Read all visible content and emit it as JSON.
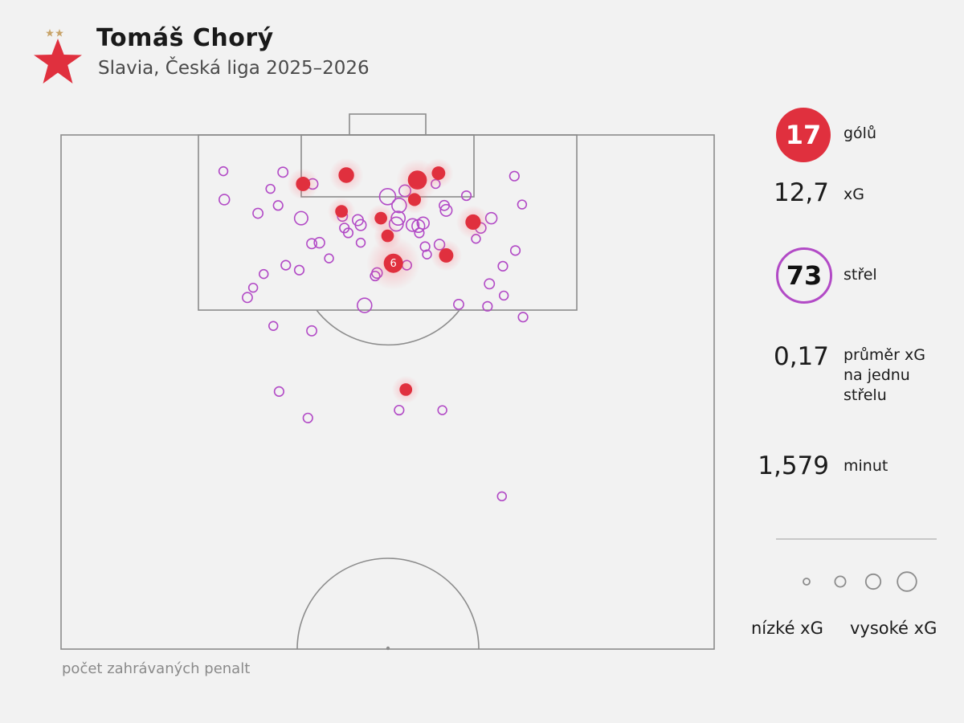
{
  "header": {
    "player_name": "Tomáš Chorý",
    "subtitle": "Slavia, Česká liga 2025–2026"
  },
  "colors": {
    "goal": "#e0303e",
    "shot": "#b24ac6",
    "pitch_line": "#8c8c8c",
    "background": "#f2f2f2"
  },
  "stats": {
    "goals_value": "17",
    "goals_label": "gólů",
    "xg_value": "12,7",
    "xg_label": "xG",
    "shots_value": "73",
    "shots_label": "střel",
    "avg_xg_value": "0,17",
    "avg_xg_label_line1": "průměr xG",
    "avg_xg_label_line2": "na jednu",
    "avg_xg_label_line3": "střelu",
    "minutes_value": "1,579",
    "minutes_label": "minut"
  },
  "legend": {
    "low_label": "nízké xG",
    "high_label": "vysoké xG",
    "example_xg": [
      0.03,
      0.08,
      0.15,
      0.25
    ]
  },
  "footnote": "počet zahrávaných penalt",
  "chart_data": {
    "type": "scatter",
    "description_units": "x = metres across pitch width (0–68, left to right), y = metres from goal line",
    "penalty_goals_label": "6",
    "goals": [
      {
        "x": 25.2,
        "y": 5.0,
        "xg": 0.18
      },
      {
        "x": 29.7,
        "y": 4.1,
        "xg": 0.23
      },
      {
        "x": 37.1,
        "y": 4.6,
        "xg": 0.4
      },
      {
        "x": 39.3,
        "y": 3.9,
        "xg": 0.15
      },
      {
        "x": 36.8,
        "y": 6.6,
        "xg": 0.13
      },
      {
        "x": 29.2,
        "y": 7.8,
        "xg": 0.12
      },
      {
        "x": 33.3,
        "y": 8.5,
        "xg": 0.12
      },
      {
        "x": 42.9,
        "y": 8.9,
        "xg": 0.22
      },
      {
        "x": 34.0,
        "y": 10.3,
        "xg": 0.12
      },
      {
        "x": 34.6,
        "y": 13.1,
        "xg": 0.76,
        "penalty": true
      },
      {
        "x": 40.1,
        "y": 12.3,
        "xg": 0.18
      },
      {
        "x": 35.9,
        "y": 26.0,
        "xg": 0.12
      }
    ],
    "shots": [
      {
        "x": 23.1,
        "y": 3.8,
        "xg": 0.05
      },
      {
        "x": 17.0,
        "y": 6.6,
        "xg": 0.06
      },
      {
        "x": 26.2,
        "y": 5.0,
        "xg": 0.06
      },
      {
        "x": 35.8,
        "y": 5.7,
        "xg": 0.09
      },
      {
        "x": 34.0,
        "y": 6.3,
        "xg": 0.25
      },
      {
        "x": 42.2,
        "y": 6.2,
        "xg": 0.04
      },
      {
        "x": 47.2,
        "y": 4.2,
        "xg": 0.04
      },
      {
        "x": 20.5,
        "y": 8.0,
        "xg": 0.05
      },
      {
        "x": 22.6,
        "y": 7.2,
        "xg": 0.04
      },
      {
        "x": 25.0,
        "y": 8.5,
        "xg": 0.14
      },
      {
        "x": 29.3,
        "y": 8.3,
        "xg": 0.05
      },
      {
        "x": 30.9,
        "y": 8.7,
        "xg": 0.07
      },
      {
        "x": 35.2,
        "y": 7.2,
        "xg": 0.18
      },
      {
        "x": 35.1,
        "y": 8.5,
        "xg": 0.16
      },
      {
        "x": 34.9,
        "y": 9.1,
        "xg": 0.16
      },
      {
        "x": 36.6,
        "y": 9.2,
        "xg": 0.12
      },
      {
        "x": 37.2,
        "y": 9.3,
        "xg": 0.12
      },
      {
        "x": 37.7,
        "y": 9.0,
        "xg": 0.1
      },
      {
        "x": 39.9,
        "y": 7.2,
        "xg": 0.05
      },
      {
        "x": 40.1,
        "y": 7.7,
        "xg": 0.09
      },
      {
        "x": 44.8,
        "y": 8.5,
        "xg": 0.08
      },
      {
        "x": 43.7,
        "y": 9.5,
        "xg": 0.06
      },
      {
        "x": 31.2,
        "y": 9.2,
        "xg": 0.07
      },
      {
        "x": 29.9,
        "y": 10.0,
        "xg": 0.04
      },
      {
        "x": 37.3,
        "y": 10.0,
        "xg": 0.04
      },
      {
        "x": 26.9,
        "y": 11.0,
        "xg": 0.06
      },
      {
        "x": 26.1,
        "y": 11.1,
        "xg": 0.05
      },
      {
        "x": 37.9,
        "y": 11.4,
        "xg": 0.04
      },
      {
        "x": 39.4,
        "y": 11.2,
        "xg": 0.06
      },
      {
        "x": 47.3,
        "y": 11.8,
        "xg": 0.04
      },
      {
        "x": 46.0,
        "y": 13.4,
        "xg": 0.04
      },
      {
        "x": 36.0,
        "y": 13.3,
        "xg": 0.04
      },
      {
        "x": 32.9,
        "y": 14.1,
        "xg": 0.06
      },
      {
        "x": 32.7,
        "y": 14.4,
        "xg": 0.04
      },
      {
        "x": 24.8,
        "y": 13.8,
        "xg": 0.04
      },
      {
        "x": 23.4,
        "y": 13.3,
        "xg": 0.04
      },
      {
        "x": 19.4,
        "y": 16.6,
        "xg": 0.05
      },
      {
        "x": 44.6,
        "y": 15.2,
        "xg": 0.05
      },
      {
        "x": 31.6,
        "y": 17.4,
        "xg": 0.18
      },
      {
        "x": 41.4,
        "y": 17.3,
        "xg": 0.05
      },
      {
        "x": 44.4,
        "y": 17.5,
        "xg": 0.04
      },
      {
        "x": 48.1,
        "y": 18.6,
        "xg": 0.04
      },
      {
        "x": 22.1,
        "y": 19.5,
        "xg": 0.03
      },
      {
        "x": 26.1,
        "y": 20.0,
        "xg": 0.05
      },
      {
        "x": 22.7,
        "y": 26.2,
        "xg": 0.04
      },
      {
        "x": 35.2,
        "y": 28.1,
        "xg": 0.04
      },
      {
        "x": 39.7,
        "y": 28.1,
        "xg": 0.03
      },
      {
        "x": 25.7,
        "y": 28.9,
        "xg": 0.04
      },
      {
        "x": 45.9,
        "y": 36.9,
        "xg": 0.03
      },
      {
        "x": 48.0,
        "y": 7.1,
        "xg": 0.03
      },
      {
        "x": 16.9,
        "y": 3.7,
        "xg": 0.03
      },
      {
        "x": 31.2,
        "y": 11.0,
        "xg": 0.03
      },
      {
        "x": 39.0,
        "y": 5.0,
        "xg": 0.03
      },
      {
        "x": 21.8,
        "y": 5.5,
        "xg": 0.03
      },
      {
        "x": 29.5,
        "y": 9.5,
        "xg": 0.04
      },
      {
        "x": 20.0,
        "y": 15.6,
        "xg": 0.03
      },
      {
        "x": 43.2,
        "y": 10.6,
        "xg": 0.03
      },
      {
        "x": 38.1,
        "y": 12.2,
        "xg": 0.03
      },
      {
        "x": 27.9,
        "y": 12.6,
        "xg": 0.03
      },
      {
        "x": 21.1,
        "y": 14.2,
        "xg": 0.03
      },
      {
        "x": 46.1,
        "y": 16.4,
        "xg": 0.03
      }
    ]
  }
}
